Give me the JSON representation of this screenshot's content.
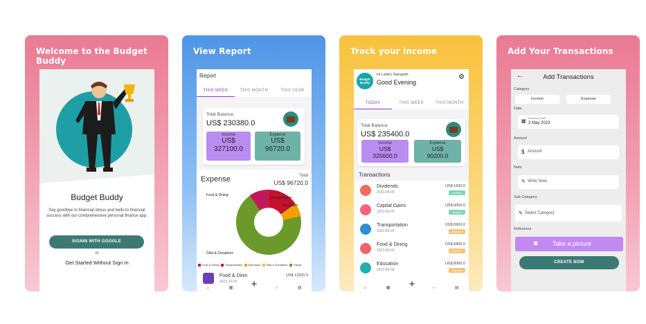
{
  "cards": [
    {
      "title": "Welcome to the Budget Buddy",
      "app_name": "Budget Buddy",
      "tagline": "Say goodbye to financial stress and hello to financial success with our comprehensive personal finance app.",
      "signin_label": "SIGNIN WITH GOOGLE",
      "or_label": "or",
      "guest_label": "Get Started Without Sign In"
    },
    {
      "title": "View Report",
      "header": "Report",
      "tabs": [
        "THIS WEEK",
        "THIS MONTH",
        "THIS YEAR"
      ],
      "balance_label": "Total Balance",
      "balance_value": "US$ 230380.0",
      "income_label": "Income",
      "income_value": "US$\n327100.0",
      "expense_label": "Expense",
      "expense_value": "US$\n96720.0",
      "expense_title": "Expense",
      "total_label": "Total",
      "total_value": "US$ 96720.0",
      "chart_labels": [
        "Food & Dining",
        "Transportation",
        "Education",
        "Gifts & Donations"
      ],
      "legend": [
        "Food & Dining",
        "Transportation",
        "Education",
        "Gifts & Donations",
        "Transp"
      ],
      "txn_name": "Food & Dinin",
      "txn_date": "2023-10-03",
      "txn_amount": "US$ 13320.0"
    },
    {
      "title": "Track your income",
      "logo": "Budget Buddy",
      "greeting_sub": "Hi Lahiru Sampath",
      "greeting": "Good Evening",
      "tabs": [
        "TODAY",
        "THIS WEEK",
        "THIS MONTH"
      ],
      "balance_label": "Total Balance",
      "balance_value": "US$ 235400.0",
      "income_label": "Income",
      "income_value": "US$\n325600.0",
      "expense_label": "Expense",
      "expense_value": "US$\n90200.0",
      "transactions_label": "Transactions",
      "transactions": [
        {
          "name": "Dividends",
          "date": "2023-05-03",
          "amount": "US$ 1600.0",
          "badge": "Income"
        },
        {
          "name": "Capital Gains",
          "date": "2023-05-03",
          "amount": "US$ 6000.0",
          "badge": "Income"
        },
        {
          "name": "Transportation",
          "date": "2023-05-03",
          "amount": "US$ 6900.0",
          "badge": "Expense"
        },
        {
          "name": "Food & Dining",
          "date": "2023-05-03",
          "amount": "US$ 6800.0",
          "badge": "Expense"
        },
        {
          "name": "Education",
          "date": "2023-05-03",
          "amount": "US$ 8000.0",
          "badge": "Expense"
        }
      ]
    },
    {
      "title": "Add Your Transactions",
      "screen_title": "Add Transactions",
      "category_label": "Category",
      "income_option": "Income",
      "expense_option": "Expense",
      "date_label": "Date",
      "date_small": "Expense Date",
      "date_value": "3 May 2023",
      "amount_label": "Amount",
      "amount_placeholder": "Amount",
      "note_label": "Note",
      "note_placeholder": "Write Note",
      "subcat_label": "Sub Category",
      "subcat_placeholder": "Select Category",
      "reference_label": "Reference",
      "picture_label": "Take a picture",
      "create_label": "CREATE NOW"
    }
  ],
  "colors": {
    "accent_teal": "#3b7a74",
    "income_purple": "#b98cf0",
    "expense_teal": "#6fb3a8",
    "tab_active": "#8e3ad6",
    "income_badge": "#7fd6b4",
    "expense_badge": "#f5c27a"
  },
  "icons": [
    "wallet-icon",
    "gear-icon",
    "home-icon",
    "chart-icon",
    "plus-icon",
    "search-icon",
    "list-icon",
    "calendar-icon",
    "dollar-icon",
    "edit-icon",
    "camera-icon",
    "back-arrow-icon"
  ]
}
